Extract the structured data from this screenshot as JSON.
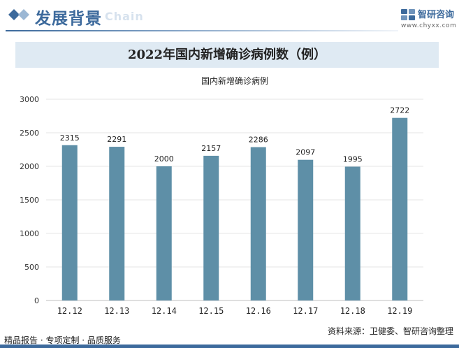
{
  "header": {
    "section_title": "发展背景",
    "section_title_en": "Chain",
    "brand_name": "智研咨询",
    "brand_url": "www.chyxx.com"
  },
  "banner": {
    "title": "2022年国内新增确诊病例数（例）"
  },
  "chart_data": {
    "type": "bar",
    "title": "2022年国内新增确诊病例数（例）",
    "legend": [
      "国内新增确诊病例"
    ],
    "legend_position": "top-center",
    "categories": [
      "12.12",
      "12.13",
      "12.14",
      "12.15",
      "12.16",
      "12.17",
      "12.18",
      "12.19"
    ],
    "series": [
      {
        "name": "国内新增确诊病例",
        "values": [
          2315,
          2291,
          2000,
          2157,
          2286,
          2097,
          1995,
          2722
        ]
      }
    ],
    "ylim": [
      0,
      3000
    ],
    "yticks": [
      0,
      500,
      1000,
      1500,
      2000,
      2500,
      3000
    ],
    "grid": true,
    "data_labels": true,
    "bar_color": "#5e8fa7"
  },
  "footer": {
    "left": "精品报告 · 专项定制 · 品质服务",
    "source": "资料来源：卫健委、智研咨询整理"
  },
  "colors": {
    "brand_blue": "#3d6a9c",
    "banner_bg": "#dfeaf3",
    "bar": "#5e8fa7"
  }
}
